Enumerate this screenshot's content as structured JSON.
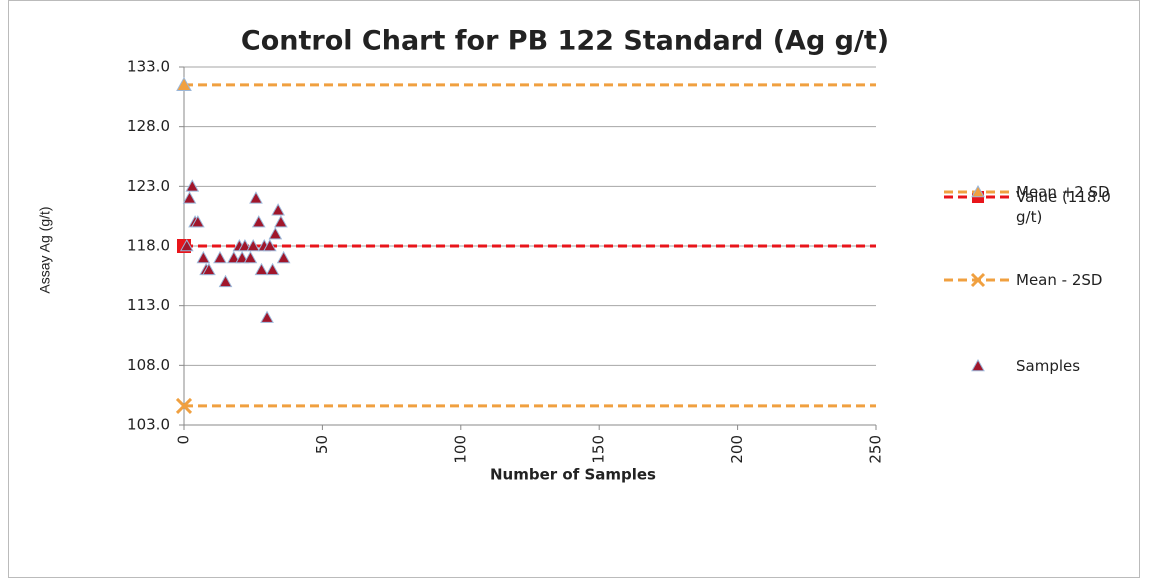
{
  "chart_data": {
    "type": "scatter",
    "title": "Control Chart for PB 122 Standard (Ag g/t)",
    "x_label": "Number of Samples",
    "y_label": "Assay Ag (g/t)",
    "xlim": [
      0,
      250
    ],
    "xticks": [
      0,
      50,
      100,
      150,
      200,
      250
    ],
    "ylim": [
      103,
      133
    ],
    "yticks": [
      {
        "value": 103,
        "label": "103.0"
      },
      {
        "value": 108,
        "label": "108.0"
      },
      {
        "value": 113,
        "label": "113.0"
      },
      {
        "value": 118,
        "label": "118.0"
      },
      {
        "value": 123,
        "label": "123.0"
      },
      {
        "value": 128,
        "label": "128.0"
      },
      {
        "value": 133,
        "label": "133.0"
      }
    ],
    "grid": true,
    "legend": "right",
    "series": [
      {
        "name": "Value (118.0 g/t)",
        "color": "#e8151b",
        "marker": "square",
        "line": "dashed",
        "x": [
          0,
          250
        ],
        "values": [
          118,
          118
        ]
      },
      {
        "name": "Mean +2 SD",
        "color": "#f0a040",
        "marker": "triangle",
        "line": "dashed",
        "x": [
          0,
          250
        ],
        "values": [
          131.5,
          131.5
        ]
      },
      {
        "name": "Mean - 2SD",
        "color": "#f0a040",
        "marker": "x",
        "line": "dashed",
        "x": [
          0,
          250
        ],
        "values": [
          104.6,
          104.6
        ]
      },
      {
        "name": "Samples",
        "color": "#a0162b",
        "marker": "triangle",
        "line": "none",
        "x": [
          1,
          2,
          3,
          4,
          5,
          7,
          8,
          9,
          13,
          15,
          18,
          20,
          21,
          22,
          24,
          25,
          26,
          27,
          28,
          29,
          30,
          31,
          32,
          33,
          34,
          35,
          36
        ],
        "values": [
          118,
          122,
          123,
          120,
          120,
          117,
          116,
          116,
          117,
          115,
          117,
          118,
          117,
          118,
          117,
          118,
          122,
          120,
          116,
          118,
          112,
          118,
          116,
          119,
          121,
          120,
          117
        ]
      }
    ]
  }
}
